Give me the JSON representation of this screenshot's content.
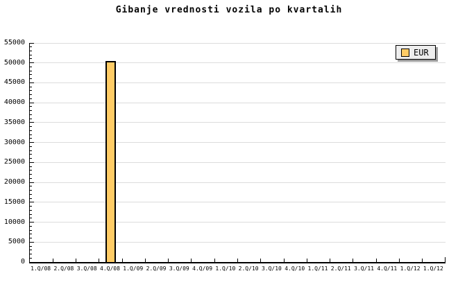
{
  "chart_data": {
    "type": "bar",
    "title": "Gibanje vrednosti vozila po kvartalih",
    "categories": [
      "1.Q/08",
      "2.Q/08",
      "3.Q/08",
      "4.Q/08",
      "1.Q/09",
      "2.Q/09",
      "3.Q/09",
      "4.Q/09",
      "1.Q/10",
      "2.Q/10",
      "3.Q/10",
      "4.Q/10",
      "1.Q/11",
      "2.Q/11",
      "3.Q/11",
      "4.Q/11",
      "1.Q/12",
      "1.Q/12"
    ],
    "series": [
      {
        "name": "EUR",
        "color": "#FFCC66",
        "border_color": "#000000",
        "values": [
          null,
          null,
          null,
          50500,
          null,
          null,
          null,
          null,
          null,
          null,
          null,
          null,
          null,
          null,
          null,
          null,
          null,
          null
        ]
      }
    ],
    "xlabel": "",
    "ylabel": "",
    "ylim": [
      0,
      55000
    ],
    "y_ticks": [
      0,
      5000,
      10000,
      15000,
      20000,
      25000,
      30000,
      35000,
      40000,
      45000,
      50000,
      55000
    ],
    "y_major_step": 5000,
    "y_minor_step": 1000,
    "grid": "horizontal-major-only",
    "grid_color": "#DCDCDC",
    "legend": {
      "position": "top-right",
      "label": "EUR",
      "background": "#EEEEEE",
      "swatch_color": "#FFCC66"
    }
  }
}
